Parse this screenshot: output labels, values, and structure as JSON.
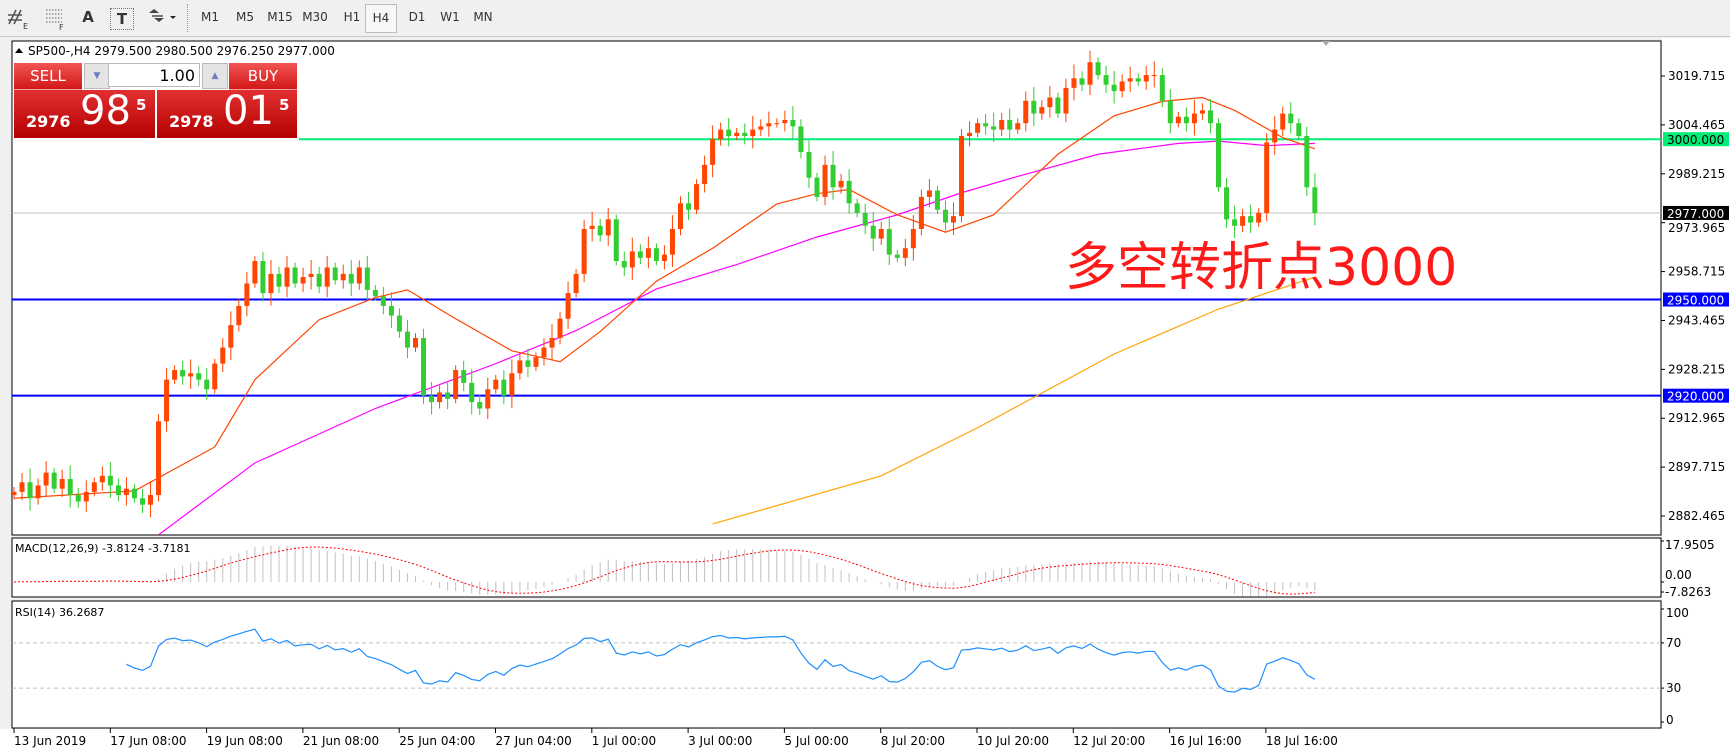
{
  "toolbar": {
    "tools": [
      {
        "icon": "indicator-list-icon"
      },
      {
        "icon": "periods-grid-icon"
      },
      {
        "label": "A",
        "icon": "text-icon"
      },
      {
        "label": "T",
        "icon": "text-label-icon"
      },
      {
        "icon": "arrows-dropdown-icon"
      }
    ],
    "timeframes": [
      "M1",
      "M5",
      "M15",
      "M30",
      "H1",
      "H4",
      "D1",
      "W1",
      "MN"
    ],
    "active_timeframe": "H4"
  },
  "chart": {
    "header": "SP500-,H4  2979.500 2980.500 2976.250 2977.000",
    "annotation": "多空转折点3000",
    "price_labels": [
      "3019.715",
      "3004.465",
      "2989.215",
      "2973.965",
      "2958.715",
      "2943.465",
      "2928.215",
      "2912.965",
      "2897.715",
      "2882.465"
    ],
    "lines": [
      {
        "price": 3000,
        "label": "3000.000",
        "color": "#00ee77"
      },
      {
        "price": 2950,
        "label": "2950.000",
        "color": "#0000ff"
      },
      {
        "price": 2920,
        "label": "2920.000",
        "color": "#0000ff"
      }
    ],
    "current_price": {
      "price": 2977,
      "label": "2977.000"
    },
    "time_labels": [
      "13 Jun 2019",
      "17 Jun 08:00",
      "19 Jun 08:00",
      "21 Jun 08:00",
      "25 Jun 04:00",
      "27 Jun 04:00",
      "1 Jul 00:00",
      "3 Jul 00:00",
      "5 Jul 00:00",
      "8 Jul 20:00",
      "10 Jul 20:00",
      "12 Jul 20:00",
      "16 Jul 16:00",
      "18 Jul 16:00"
    ],
    "colors": {
      "bull": "#ff4500",
      "bear": "#32cd32",
      "ma_fast": "#ff4500",
      "ma_mid": "#ff00ff",
      "ma_slow": "#ffa500",
      "macd_hist": "#c0c0c0",
      "macd_signal": "#ff0000",
      "rsi": "#1e90ff"
    }
  },
  "trade_panel": {
    "sell_label": "SELL",
    "buy_label": "BUY",
    "lot": "1.00",
    "sell_price": {
      "prefix": "2976",
      "big": "98",
      "sup": "5"
    },
    "buy_price": {
      "prefix": "2978",
      "big": "01",
      "sup": "5"
    }
  },
  "macd": {
    "label": "MACD(12,26,9) -3.8124 -3.7181",
    "scale_labels": [
      "17.9505",
      "0.00",
      "-7.8263"
    ],
    "max": 17.9505,
    "min": -7.8263
  },
  "rsi": {
    "label": "RSI(14) 36.2687",
    "scale_labels": [
      "100",
      "70",
      "30",
      "0"
    ],
    "levels": [
      70,
      30
    ]
  },
  "chart_data": {
    "type": "candlestick",
    "symbol": "SP500-",
    "timeframe": "H4",
    "ylim": [
      2882.465,
      3019.715
    ],
    "closes": [
      2890,
      2893,
      2888,
      2892,
      2896,
      2891,
      2894,
      2889,
      2887,
      2890,
      2893,
      2895,
      2892,
      2889,
      2891,
      2888,
      2886,
      2889,
      2912,
      2925,
      2928,
      2926,
      2927,
      2925,
      2922,
      2930,
      2935,
      2942,
      2948,
      2955,
      2962,
      2952,
      2958,
      2954,
      2960,
      2955,
      2957,
      2958,
      2954,
      2960,
      2956,
      2958,
      2955,
      2960,
      2953,
      2951,
      2948,
      2945,
      2940,
      2935,
      2938,
      2920,
      2918,
      2921,
      2919,
      2928,
      2924,
      2918,
      2916,
      2922,
      2925,
      2920,
      2927,
      2931,
      2929,
      2932,
      2935,
      2938,
      2944,
      2952,
      2958,
      2972,
      2973,
      2970,
      2975,
      2962,
      2960,
      2965,
      2963,
      2966,
      2962,
      2964,
      2972,
      2980,
      2978,
      2986,
      2992,
      3000,
      3003,
      3001,
      3002,
      3001,
      3003,
      3004,
      3005,
      3005,
      3006,
      3004,
      2996,
      2988,
      2982,
      2992,
      2985,
      2987,
      2980,
      2977,
      2973,
      2969,
      2972,
      2964,
      2963,
      2966,
      2972,
      2982,
      2984,
      2978,
      2974,
      2976,
      3001,
      3002,
      3005,
      3004,
      3003,
      3006,
      3003,
      3005,
      3012,
      3008,
      3010,
      3013,
      3008,
      3016,
      3019,
      3017,
      3024,
      3020,
      3017,
      3015,
      3018,
      3019,
      3018,
      3020,
      3020,
      3012,
      3005,
      3007,
      3005,
      3008,
      3009,
      3005,
      2985,
      2975,
      2973,
      2976,
      2974,
      2977,
      2999,
      3003,
      3008,
      3005,
      3001,
      2985,
      2977
    ],
    "ma_fast": [
      [
        0,
        2888
      ],
      [
        15,
        2890.3
      ],
      [
        25,
        2904
      ],
      [
        30,
        2925
      ],
      [
        38,
        2943.7
      ],
      [
        45,
        2950.6
      ],
      [
        49,
        2953
      ],
      [
        55,
        2944
      ],
      [
        62,
        2934
      ],
      [
        68,
        2930.6
      ],
      [
        73,
        2940
      ],
      [
        80,
        2955.7
      ],
      [
        87,
        2966
      ],
      [
        95,
        2979.8
      ],
      [
        100,
        2983
      ],
      [
        104,
        2984.3
      ],
      [
        110,
        2976.4
      ],
      [
        116,
        2971
      ],
      [
        122,
        2976.4
      ],
      [
        130,
        2995.3
      ],
      [
        137,
        3007.3
      ],
      [
        143,
        3011.8
      ],
      [
        148,
        3013
      ],
      [
        152,
        3009
      ],
      [
        158,
        3000.5
      ],
      [
        162,
        2997
      ]
    ],
    "ma_mid": [
      [
        18,
        2876.6
      ],
      [
        30,
        2899
      ],
      [
        45,
        2916
      ],
      [
        60,
        2930
      ],
      [
        70,
        2940.3
      ],
      [
        80,
        2953.3
      ],
      [
        90,
        2960.9
      ],
      [
        100,
        2969.5
      ],
      [
        110,
        2976.4
      ],
      [
        118,
        2983.3
      ],
      [
        125,
        2988.4
      ],
      [
        135,
        2995.3
      ],
      [
        145,
        2998.7
      ],
      [
        150,
        2999.4
      ],
      [
        156,
        2998
      ],
      [
        162,
        2998.7
      ]
    ],
    "ma_slow": [
      [
        87,
        2880
      ],
      [
        108,
        2895
      ],
      [
        120,
        2910
      ],
      [
        137,
        2933
      ],
      [
        150,
        2947
      ],
      [
        162,
        2957
      ]
    ]
  }
}
